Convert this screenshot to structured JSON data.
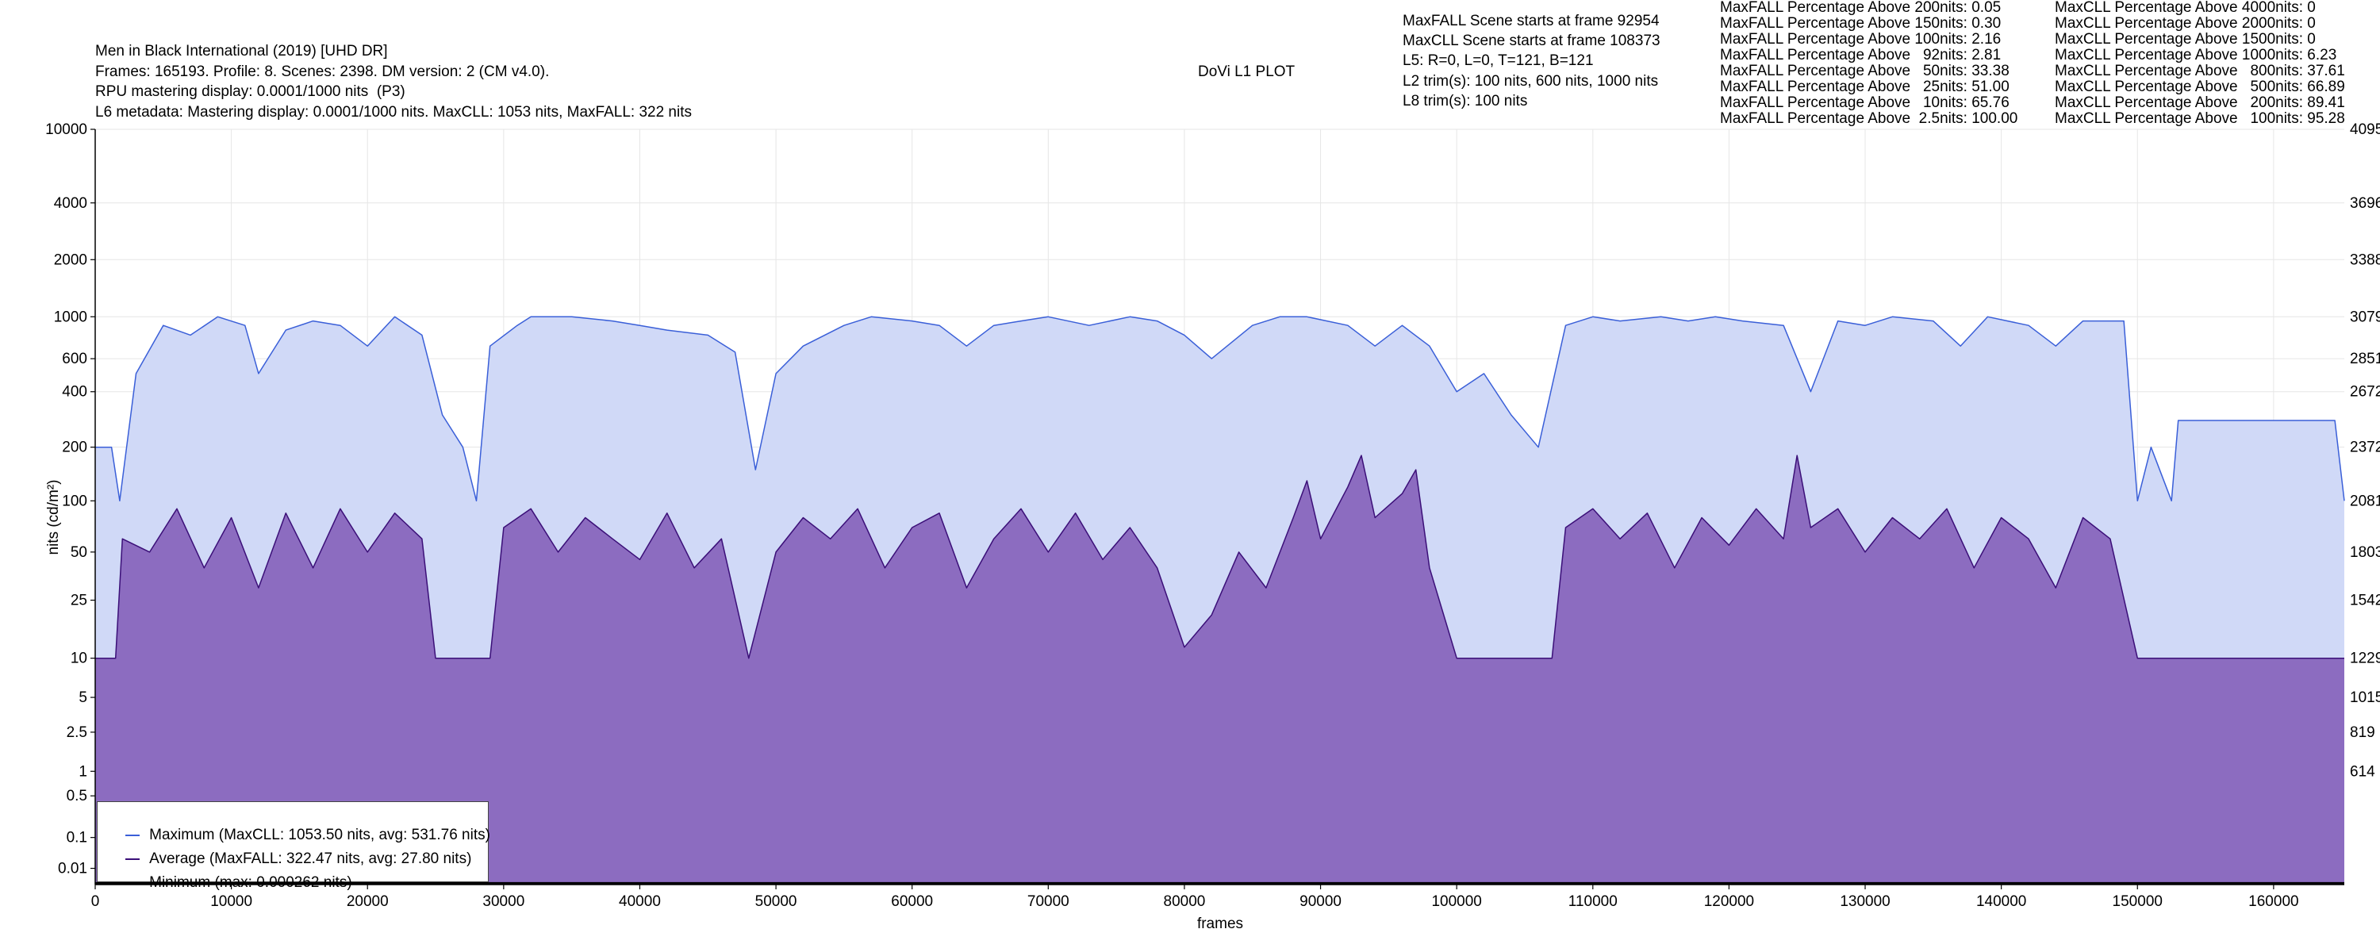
{
  "header": {
    "title": "Men in Black International (2019) [UHD DR]",
    "line2": "Frames: 165193. Profile: 8. Scenes: 2398. DM version: 2 (CM v4.0).",
    "line3": "RPU mastering display: 0.0001/1000 nits  (P3)",
    "line4": "L6 metadata: Mastering display: 0.0001/1000 nits. MaxCLL: 1053 nits, MaxFALL: 322 nits",
    "plot_name": "DoVi L1 PLOT"
  },
  "info": {
    "maxfall_scene": "MaxFALL Scene starts at frame 92954",
    "maxcll_scene": "MaxCLL Scene starts at frame 108373",
    "l5": "L5: R=0, L=0, T=121, B=121",
    "l2": "L2 trim(s): 100 nits, 600 nits, 1000 nits",
    "l8": "L8 trim(s): 100 nits"
  },
  "maxfall_stats": [
    "MaxFALL Percentage Above 200nits: 0.05",
    "MaxFALL Percentage Above 150nits: 0.30",
    "MaxFALL Percentage Above 100nits: 2.16",
    "MaxFALL Percentage Above   92nits: 2.81",
    "MaxFALL Percentage Above   50nits: 33.38",
    "MaxFALL Percentage Above   25nits: 51.00",
    "MaxFALL Percentage Above   10nits: 65.76",
    "MaxFALL Percentage Above  2.5nits: 100.00"
  ],
  "maxcll_stats": [
    "MaxCLL Percentage Above 4000nits: 0",
    "MaxCLL Percentage Above 2000nits: 0",
    "MaxCLL Percentage Above 1500nits: 0",
    "MaxCLL Percentage Above 1000nits: 6.23",
    "MaxCLL Percentage Above   800nits: 37.61",
    "MaxCLL Percentage Above   500nits: 66.89",
    "MaxCLL Percentage Above   200nits: 89.41",
    "MaxCLL Percentage Above   100nits: 95.28"
  ],
  "legend": {
    "maximum": "Maximum (MaxCLL: 1053.50 nits, avg: 531.76 nits)",
    "average": "Average (MaxFALL: 322.47 nits, avg: 27.80 nits)",
    "minimum": "Minimum (max: 0.000262 nits)"
  },
  "colors": {
    "max_line": "#3a5fd8",
    "max_fill": "#d0d9f7",
    "avg_line": "#3b0f78",
    "avg_fill": "#8c6cc0",
    "min_line": "#000000",
    "grid": "#e6e6e6"
  },
  "chart_data": {
    "type": "area",
    "xlabel": "frames",
    "ylabel": "nits (cd/m²)",
    "xlim": [
      0,
      165193
    ],
    "x_ticks": [
      0,
      10000,
      20000,
      30000,
      40000,
      50000,
      60000,
      70000,
      80000,
      90000,
      100000,
      110000,
      120000,
      130000,
      140000,
      150000,
      160000
    ],
    "y_scale": "PQ",
    "y_ticks": [
      {
        "label": "0.01",
        "nits": 0.01
      },
      {
        "label": "0.1",
        "nits": 0.1
      },
      {
        "label": "0.5",
        "nits": 0.5
      },
      {
        "label": "1",
        "nits": 1
      },
      {
        "label": "2.5",
        "nits": 2.5
      },
      {
        "label": "5",
        "nits": 5
      },
      {
        "label": "10",
        "nits": 10
      },
      {
        "label": "25",
        "nits": 25
      },
      {
        "label": "50",
        "nits": 50
      },
      {
        "label": "100",
        "nits": 100
      },
      {
        "label": "200",
        "nits": 200
      },
      {
        "label": "400",
        "nits": 400
      },
      {
        "label": "600",
        "nits": 600
      },
      {
        "label": "1000",
        "nits": 1000
      },
      {
        "label": "2000",
        "nits": 2000
      },
      {
        "label": "4000",
        "nits": 4000
      },
      {
        "label": "10000",
        "nits": 10000
      }
    ],
    "right_ticks": [
      {
        "label": "4095",
        "nits": 10000
      },
      {
        "label": "3696",
        "nits": 4000
      },
      {
        "label": "3388",
        "nits": 2000
      },
      {
        "label": "3079",
        "nits": 1000
      },
      {
        "label": "2851",
        "nits": 600
      },
      {
        "label": "2672",
        "nits": 400
      },
      {
        "label": "2372",
        "nits": 200
      },
      {
        "label": "2081",
        "nits": 100
      },
      {
        "label": "1803",
        "nits": 50
      },
      {
        "label": "1542",
        "nits": 25
      },
      {
        "label": "1229",
        "nits": 10
      },
      {
        "label": "1015",
        "nits": 5
      },
      {
        "label": "819",
        "nits": 2.5
      },
      {
        "label": "614",
        "nits": 1
      }
    ],
    "series": [
      {
        "name": "Maximum (MaxCLL: 1053.50 nits, avg: 531.76 nits)",
        "points": [
          [
            0,
            200
          ],
          [
            1200,
            200
          ],
          [
            1800,
            100
          ],
          [
            3000,
            500
          ],
          [
            5000,
            900
          ],
          [
            7000,
            800
          ],
          [
            9000,
            1000
          ],
          [
            11000,
            900
          ],
          [
            12000,
            500
          ],
          [
            14000,
            850
          ],
          [
            16000,
            950
          ],
          [
            18000,
            900
          ],
          [
            20000,
            700
          ],
          [
            22000,
            1000
          ],
          [
            24000,
            800
          ],
          [
            25500,
            300
          ],
          [
            27000,
            200
          ],
          [
            28000,
            100
          ],
          [
            29000,
            700
          ],
          [
            31000,
            900
          ],
          [
            32000,
            1000
          ],
          [
            35000,
            1000
          ],
          [
            38000,
            950
          ],
          [
            40000,
            900
          ],
          [
            42000,
            850
          ],
          [
            45000,
            800
          ],
          [
            47000,
            650
          ],
          [
            48500,
            150
          ],
          [
            50000,
            500
          ],
          [
            52000,
            700
          ],
          [
            55000,
            900
          ],
          [
            57000,
            1000
          ],
          [
            60000,
            950
          ],
          [
            62000,
            900
          ],
          [
            64000,
            700
          ],
          [
            66000,
            900
          ],
          [
            68000,
            950
          ],
          [
            70000,
            1000
          ],
          [
            73000,
            900
          ],
          [
            76000,
            1000
          ],
          [
            78000,
            950
          ],
          [
            80000,
            800
          ],
          [
            82000,
            600
          ],
          [
            85000,
            900
          ],
          [
            87000,
            1000
          ],
          [
            89000,
            1000
          ],
          [
            92000,
            900
          ],
          [
            94000,
            700
          ],
          [
            96000,
            900
          ],
          [
            98000,
            700
          ],
          [
            100000,
            400
          ],
          [
            102000,
            500
          ],
          [
            104000,
            300
          ],
          [
            106000,
            200
          ],
          [
            108000,
            900
          ],
          [
            110000,
            1000
          ],
          [
            112000,
            950
          ],
          [
            115000,
            1000
          ],
          [
            117000,
            950
          ],
          [
            119000,
            1000
          ],
          [
            121000,
            950
          ],
          [
            124000,
            900
          ],
          [
            126000,
            400
          ],
          [
            128000,
            950
          ],
          [
            130000,
            900
          ],
          [
            132000,
            1000
          ],
          [
            135000,
            950
          ],
          [
            137000,
            700
          ],
          [
            139000,
            1000
          ],
          [
            142000,
            900
          ],
          [
            144000,
            700
          ],
          [
            146000,
            950
          ],
          [
            149000,
            950
          ],
          [
            150000,
            100
          ],
          [
            151000,
            200
          ],
          [
            152500,
            100
          ],
          [
            153000,
            280
          ],
          [
            164500,
            280
          ],
          [
            165193,
            100
          ]
        ]
      },
      {
        "name": "Average (MaxFALL: 322.47 nits, avg: 27.80 nits)",
        "points": [
          [
            0,
            10
          ],
          [
            1500,
            10
          ],
          [
            2000,
            60
          ],
          [
            4000,
            50
          ],
          [
            6000,
            90
          ],
          [
            8000,
            40
          ],
          [
            10000,
            80
          ],
          [
            12000,
            30
          ],
          [
            14000,
            85
          ],
          [
            16000,
            40
          ],
          [
            18000,
            90
          ],
          [
            20000,
            50
          ],
          [
            22000,
            85
          ],
          [
            24000,
            60
          ],
          [
            25000,
            10
          ],
          [
            29000,
            10
          ],
          [
            30000,
            70
          ],
          [
            32000,
            90
          ],
          [
            34000,
            50
          ],
          [
            36000,
            80
          ],
          [
            38000,
            60
          ],
          [
            40000,
            45
          ],
          [
            42000,
            85
          ],
          [
            44000,
            40
          ],
          [
            46000,
            60
          ],
          [
            48000,
            10
          ],
          [
            50000,
            50
          ],
          [
            52000,
            80
          ],
          [
            54000,
            60
          ],
          [
            56000,
            90
          ],
          [
            58000,
            40
          ],
          [
            60000,
            70
          ],
          [
            62000,
            85
          ],
          [
            64000,
            30
          ],
          [
            66000,
            60
          ],
          [
            68000,
            90
          ],
          [
            70000,
            50
          ],
          [
            72000,
            85
          ],
          [
            74000,
            45
          ],
          [
            76000,
            70
          ],
          [
            78000,
            40
          ],
          [
            80000,
            12
          ],
          [
            82000,
            20
          ],
          [
            84000,
            50
          ],
          [
            86000,
            30
          ],
          [
            88000,
            80
          ],
          [
            89000,
            130
          ],
          [
            90000,
            60
          ],
          [
            92000,
            120
          ],
          [
            93000,
            180
          ],
          [
            94000,
            80
          ],
          [
            96000,
            110
          ],
          [
            97000,
            150
          ],
          [
            98000,
            40
          ],
          [
            100000,
            10
          ],
          [
            107000,
            10
          ],
          [
            108000,
            70
          ],
          [
            110000,
            90
          ],
          [
            112000,
            60
          ],
          [
            114000,
            85
          ],
          [
            116000,
            40
          ],
          [
            118000,
            80
          ],
          [
            120000,
            55
          ],
          [
            122000,
            90
          ],
          [
            124000,
            60
          ],
          [
            125000,
            180
          ],
          [
            126000,
            70
          ],
          [
            128000,
            90
          ],
          [
            130000,
            50
          ],
          [
            132000,
            80
          ],
          [
            134000,
            60
          ],
          [
            136000,
            90
          ],
          [
            138000,
            40
          ],
          [
            140000,
            80
          ],
          [
            142000,
            60
          ],
          [
            144000,
            30
          ],
          [
            146000,
            80
          ],
          [
            148000,
            60
          ],
          [
            150000,
            10
          ],
          [
            165193,
            10
          ]
        ]
      },
      {
        "name": "Minimum (max: 0.000262 nits)",
        "points": [
          [
            0,
            0.0001
          ],
          [
            165193,
            0.0001
          ]
        ]
      }
    ]
  }
}
